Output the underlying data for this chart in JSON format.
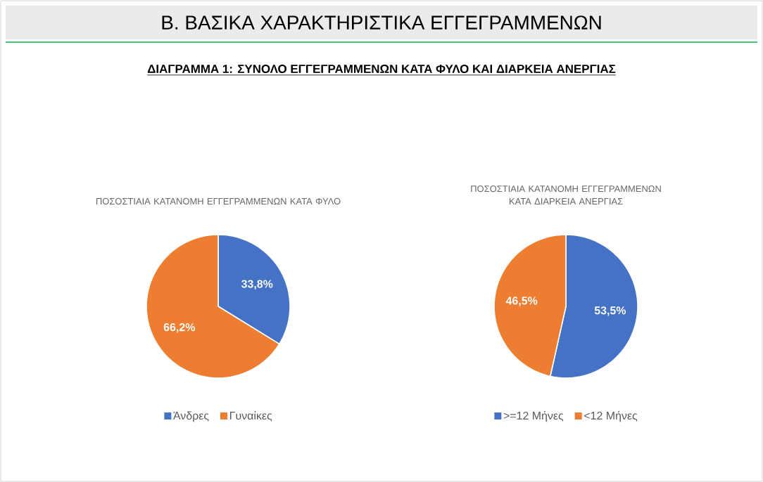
{
  "chart_data": [
    {
      "type": "pie",
      "title": "ΠΟΣΟΣΤΙΑΙΑ ΚΑΤΑΝΟΜΗ ΕΓΓΕΓΡΑΜΜΕΝΩΝ ΚΑΤΑ ΦΥΛΟ",
      "categories": [
        "Άνδρες",
        "Γυναίκες"
      ],
      "values": [
        33.8,
        66.2
      ],
      "colors": [
        "#4472c4",
        "#ed7d31"
      ],
      "value_labels": [
        "33,8%",
        "66,2%"
      ],
      "legend": "bottom",
      "annotations": [
        "Β.  ΒΑΣΙΚΑ ΧΑΡΑΚΤΗΡΙΣΤΙΚΑ ΕΓΓΕΓΡΑΜΜΕΝΩΝ",
        "ΔΙΑΓΡΑΜΜΑ 1: ΣΥΝΟΛΟ ΕΓΓΕΓΡΑΜΜΕΝΩΝ ΚΑΤΑ ΦΥΛΟ ΚΑΙ ΔΙΑΡΚΕΙΑ ΑΝΕΡΓΙΑΣ"
      ]
    },
    {
      "type": "pie",
      "title": "ΠΟΣΟΣΤΙΑΙΑ ΚΑΤΑΝΟΜΗ ΕΓΓΕΓΡΑΜΜΕΝΩΝ ΚΑΤΑ ΔΙΑΡΚΕΙΑ ΑΝΕΡΓΙΑΣ",
      "categories": [
        ">=12 Μήνες",
        "<12 Μήνες"
      ],
      "values": [
        53.5,
        46.5
      ],
      "colors": [
        "#4472c4",
        "#ed7d31"
      ],
      "value_labels": [
        "53,5%",
        "46,5%"
      ],
      "legend": "bottom"
    }
  ]
}
